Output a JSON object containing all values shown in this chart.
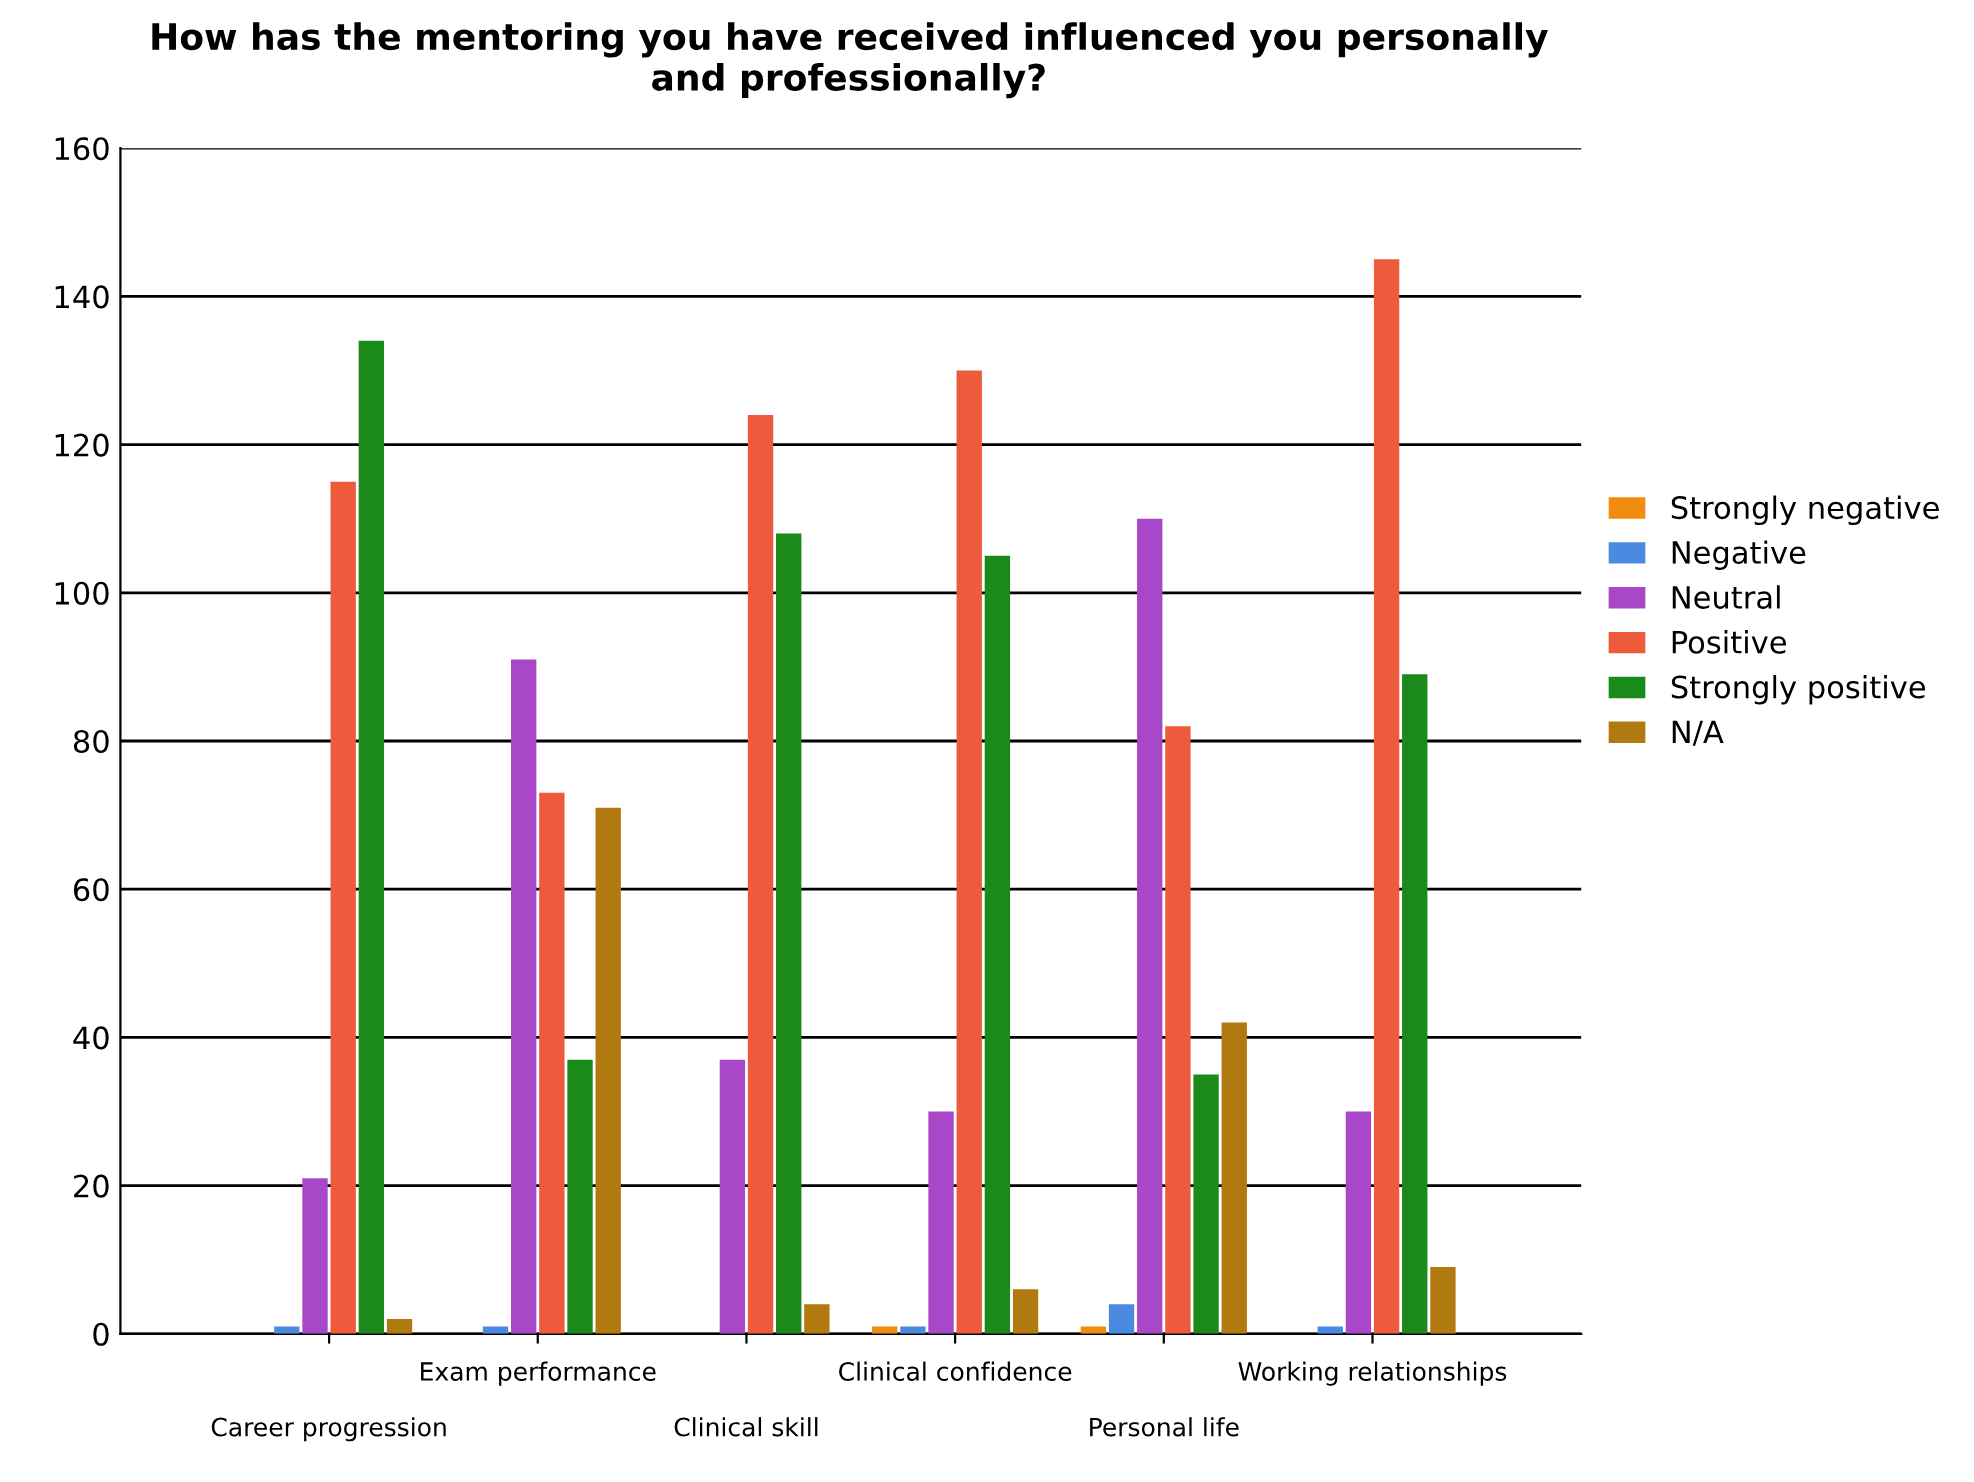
{
  "chart_data": {
    "type": "bar",
    "title": "How has the mentoring you have received influenced you personally\nand professionally?",
    "categories": [
      "Career progression",
      "Exam performance",
      "Clinical skill",
      "Clinical confidence",
      "Personal life",
      "Working relationships"
    ],
    "series": [
      {
        "name": "Strongly negative",
        "color": "#f08c10",
        "values": [
          0,
          0,
          0,
          1,
          1,
          0
        ]
      },
      {
        "name": "Negative",
        "color": "#4a8ae0",
        "values": [
          1,
          1,
          0,
          1,
          4,
          1
        ]
      },
      {
        "name": "Neutral",
        "color": "#a848c8",
        "values": [
          21,
          91,
          37,
          30,
          110,
          30
        ]
      },
      {
        "name": "Positive",
        "color": "#ee5a3c",
        "values": [
          115,
          73,
          124,
          130,
          82,
          145
        ]
      },
      {
        "name": "Strongly positive",
        "color": "#1a8a1a",
        "values": [
          134,
          37,
          108,
          105,
          35,
          89
        ]
      },
      {
        "name": "N/A",
        "color": "#b07a10",
        "values": [
          2,
          71,
          4,
          6,
          42,
          9
        ]
      }
    ],
    "ylim": [
      0,
      160
    ],
    "yticks": [
      0,
      20,
      40,
      60,
      80,
      100,
      120,
      140,
      160
    ],
    "grid": "y",
    "legend": "right"
  }
}
